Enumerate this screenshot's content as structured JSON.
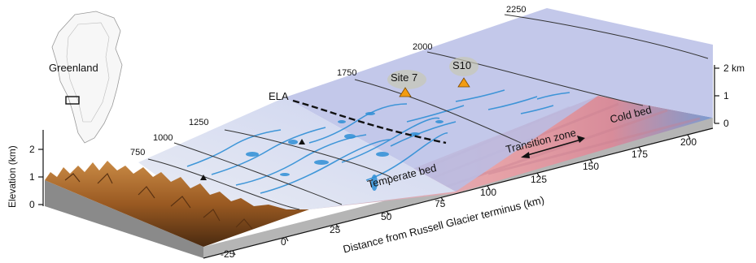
{
  "inset": {
    "label": "Greenland"
  },
  "contours": [
    "750",
    "1000",
    "1250",
    "1750",
    "2000",
    "2250"
  ],
  "ela": {
    "label": "ELA"
  },
  "sites": [
    {
      "label": "Site 7",
      "color": "#f39c12"
    },
    {
      "label": "S10",
      "color": "#f39c12"
    }
  ],
  "bed_zones": [
    {
      "label": "Temperate bed",
      "color": "#e8a0a6"
    },
    {
      "label": "Transition zone",
      "color": "#d27f92"
    },
    {
      "label": "Cold bed",
      "color": "#6f8fc4"
    }
  ],
  "x_axis": {
    "title": "Distance from Russell Glacier terminus (km)",
    "ticks": [
      "-25",
      "0",
      "25",
      "50",
      "75",
      "100",
      "125",
      "150",
      "175",
      "200"
    ]
  },
  "elevation_axis": {
    "title": "Elevation (km)",
    "ticks": [
      "0",
      "1",
      "2"
    ]
  },
  "right_axis": {
    "ticks": [
      "0",
      "1",
      "2 km"
    ]
  },
  "colors": {
    "ice_surface": "#b9bee6",
    "meltwater": "#2f8fd6",
    "terrain": "#a8652a"
  }
}
